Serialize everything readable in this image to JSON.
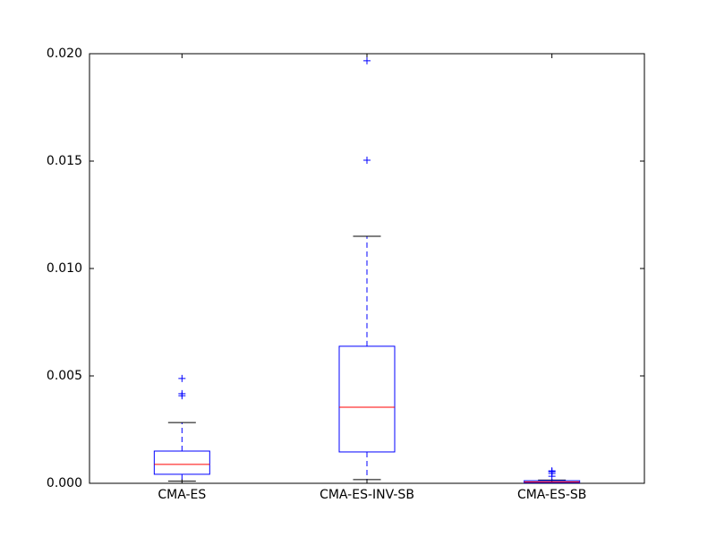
{
  "chart_data": {
    "type": "box",
    "categories": [
      "CMA-ES",
      "CMA-ES-INV-SB",
      "CMA-ES-SB"
    ],
    "boxes": [
      {
        "whislo": 0.0001,
        "q1": 0.00042,
        "med": 0.00088,
        "q3": 0.0015,
        "whishi": 0.00283,
        "fliers": [
          0.00408,
          0.00417,
          0.00488
        ]
      },
      {
        "whislo": 0.00017,
        "q1": 0.00146,
        "med": 0.00354,
        "q3": 0.00638,
        "whishi": 0.0115,
        "fliers": [
          0.01504,
          0.01967
        ]
      },
      {
        "whislo": 2e-05,
        "q1": 3e-05,
        "med": 6e-05,
        "q3": 0.00012,
        "whishi": 0.00015,
        "fliers": [
          0.00033,
          0.00046,
          0.00054,
          0.00058
        ]
      }
    ],
    "box_color": "#0000ff",
    "median_color": "#ff0000",
    "cap_color": "#000000",
    "ylim": [
      0,
      0.02
    ],
    "yticks": [
      {
        "value": 0,
        "label": "0.000"
      },
      {
        "value": 0.005,
        "label": "0.005"
      },
      {
        "value": 0.01,
        "label": "0.010"
      },
      {
        "value": 0.015,
        "label": "0.015"
      },
      {
        "value": 0.02,
        "label": "0.020"
      }
    ]
  }
}
